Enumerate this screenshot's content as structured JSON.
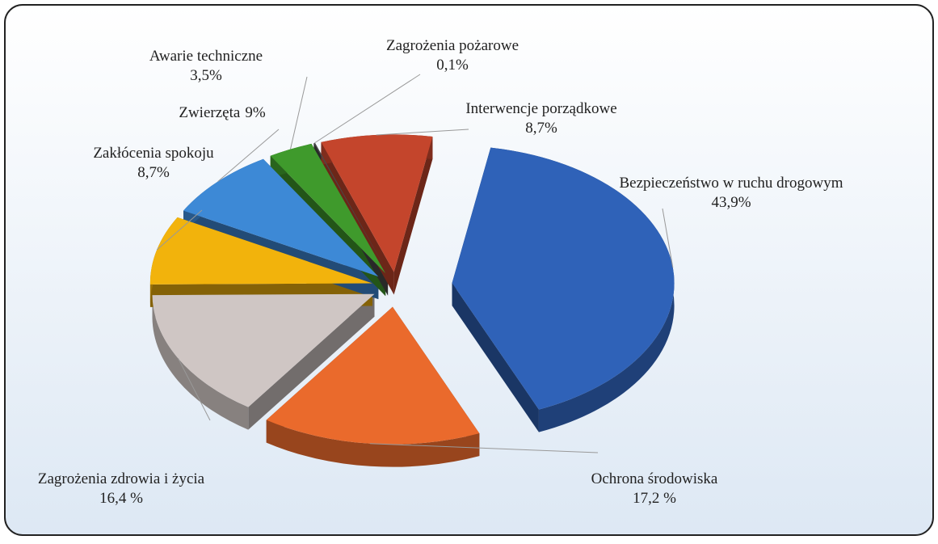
{
  "chart_data": {
    "type": "pie",
    "categories": [
      "Bezpieczeństwo w ruchu drogowym",
      "Ochrona środowiska",
      "Zagrożenia zdrowia i życia",
      "Zakłócenia spokoju",
      "Zwierzęta",
      "Awarie techniczne",
      "Zagrożenia pożarowe",
      "Interwencje porządkowe"
    ],
    "values": [
      43.9,
      17.2,
      16.4,
      8.7,
      9,
      3.5,
      0.1,
      8.7
    ],
    "value_labels": [
      "43,9%",
      "17,2 %",
      "16,4 %",
      "8,7%",
      "9%",
      "3,5%",
      "0,1%",
      "8,7%"
    ],
    "colors": [
      "#2f62b8",
      "#ea6a2c",
      "#cfc6c4",
      "#f2b30c",
      "#3d89d6",
      "#3f9a2c",
      "#4a4a4a",
      "#c4452c"
    ]
  }
}
